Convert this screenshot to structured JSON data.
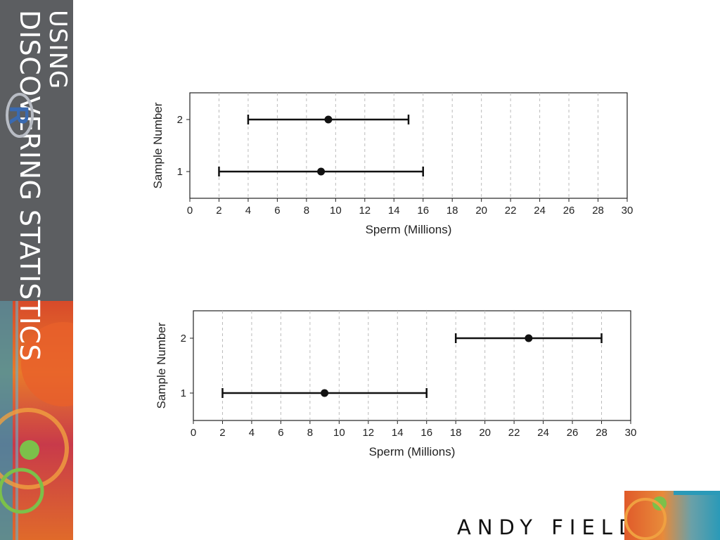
{
  "sidebar": {
    "title_line1": "DISCOVERING STATISTICS",
    "title_line2": "USING",
    "logo_letter": "R"
  },
  "footer": {
    "author": "ANDY FIELD"
  },
  "chart_data": [
    {
      "type": "errorbar",
      "xlabel": "Sperm (Millions)",
      "ylabel": "Sample Number",
      "xlim": [
        0,
        30
      ],
      "xticks": [
        0,
        2,
        4,
        6,
        8,
        10,
        12,
        14,
        16,
        18,
        20,
        22,
        24,
        26,
        28,
        30
      ],
      "yticks": [
        1,
        2
      ],
      "grid": "vertical dashed",
      "points": [
        {
          "sample": 1,
          "mean": 9,
          "lower": 2,
          "upper": 16
        },
        {
          "sample": 2,
          "mean": 9.5,
          "lower": 4,
          "upper": 15
        }
      ]
    },
    {
      "type": "errorbar",
      "xlabel": "Sperm (Millions)",
      "ylabel": "Sample Number",
      "xlim": [
        0,
        30
      ],
      "xticks": [
        0,
        2,
        4,
        6,
        8,
        10,
        12,
        14,
        16,
        18,
        20,
        22,
        24,
        26,
        28,
        30
      ],
      "yticks": [
        1,
        2
      ],
      "grid": "vertical dashed",
      "points": [
        {
          "sample": 1,
          "mean": 9,
          "lower": 2,
          "upper": 16
        },
        {
          "sample": 2,
          "mean": 23,
          "lower": 18,
          "upper": 28
        }
      ]
    }
  ]
}
